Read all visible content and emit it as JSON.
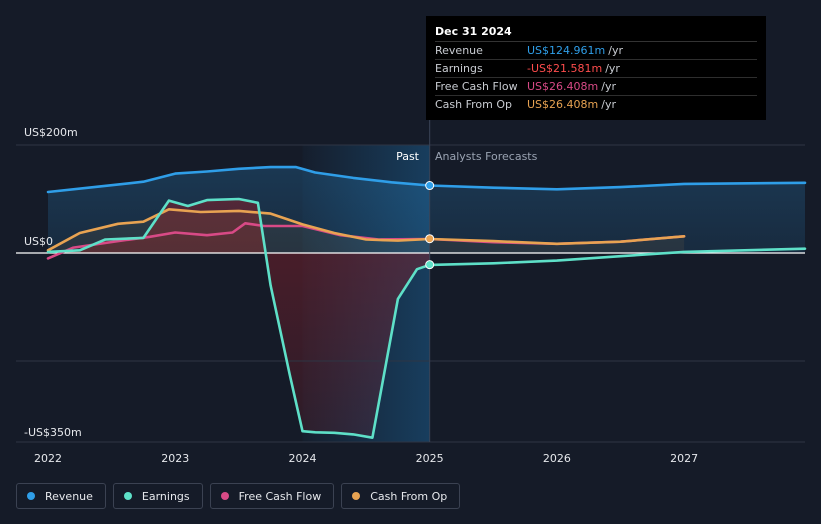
{
  "chart_data": {
    "type": "line",
    "x_start": 2022,
    "x_end": 2027.95,
    "x_ticks": [
      "2022",
      "2023",
      "2024",
      "2025",
      "2026",
      "2027"
    ],
    "y_min": -350,
    "y_max": 200,
    "y_labels": [
      {
        "label": "US$200m",
        "value": 200
      },
      {
        "label": "US$0",
        "value": 0
      },
      {
        "label": "-US$350m",
        "value": -350
      }
    ],
    "divider_x": 2025,
    "past_label": "Past",
    "forecast_label": "Analysts Forecasts",
    "series": [
      {
        "name": "Revenue",
        "color": "#2f9ee8",
        "points": [
          [
            2022,
            113
          ],
          [
            2022.4,
            123
          ],
          [
            2022.75,
            132
          ],
          [
            2023,
            147
          ],
          [
            2023.25,
            151
          ],
          [
            2023.5,
            156
          ],
          [
            2023.75,
            159
          ],
          [
            2023.95,
            159
          ],
          [
            2024.1,
            149
          ],
          [
            2024.4,
            139
          ],
          [
            2024.7,
            131
          ],
          [
            2025,
            125
          ],
          [
            2025.5,
            121
          ],
          [
            2026,
            118
          ],
          [
            2026.5,
            122
          ],
          [
            2027,
            128
          ],
          [
            2027.95,
            130
          ]
        ]
      },
      {
        "name": "Earnings",
        "color": "#5ee0c8",
        "points": [
          [
            2022,
            2
          ],
          [
            2022.25,
            5
          ],
          [
            2022.45,
            25
          ],
          [
            2022.75,
            28
          ],
          [
            2022.95,
            97
          ],
          [
            2023.1,
            87
          ],
          [
            2023.25,
            98
          ],
          [
            2023.5,
            100
          ],
          [
            2023.65,
            93
          ],
          [
            2023.75,
            -60
          ],
          [
            2023.9,
            -225
          ],
          [
            2024,
            -330
          ],
          [
            2024.1,
            -332
          ],
          [
            2024.25,
            -333
          ],
          [
            2024.4,
            -336
          ],
          [
            2024.55,
            -342
          ],
          [
            2024.75,
            -85
          ],
          [
            2024.9,
            -30
          ],
          [
            2025,
            -22
          ],
          [
            2025.5,
            -19
          ],
          [
            2026,
            -14
          ],
          [
            2026.5,
            -6
          ],
          [
            2027,
            2
          ],
          [
            2027.95,
            8
          ]
        ]
      },
      {
        "name": "Free Cash Flow",
        "color": "#d84a86",
        "points": [
          [
            2022,
            -10
          ],
          [
            2022.2,
            10
          ],
          [
            2022.55,
            22
          ],
          [
            2022.8,
            30
          ],
          [
            2023,
            38
          ],
          [
            2023.25,
            33
          ],
          [
            2023.45,
            38
          ],
          [
            2023.55,
            55
          ],
          [
            2023.7,
            50
          ],
          [
            2024,
            50
          ],
          [
            2024.3,
            33
          ],
          [
            2024.6,
            25
          ],
          [
            2025,
            26
          ],
          [
            2025.5,
            20
          ],
          [
            2026,
            17
          ],
          [
            2026.5,
            21
          ],
          [
            2027,
            31
          ]
        ]
      },
      {
        "name": "Cash From Op",
        "color": "#e8a352",
        "points": [
          [
            2022,
            5
          ],
          [
            2022.25,
            37
          ],
          [
            2022.55,
            54
          ],
          [
            2022.75,
            58
          ],
          [
            2022.95,
            81
          ],
          [
            2023.2,
            76
          ],
          [
            2023.5,
            78
          ],
          [
            2023.75,
            73
          ],
          [
            2024,
            53
          ],
          [
            2024.25,
            37
          ],
          [
            2024.5,
            25
          ],
          [
            2024.75,
            23
          ],
          [
            2025,
            26
          ],
          [
            2025.5,
            22
          ],
          [
            2026,
            17
          ],
          [
            2026.5,
            21
          ],
          [
            2027,
            31
          ]
        ]
      }
    ],
    "markers": [
      {
        "series": "Revenue",
        "x": 2025,
        "y": 124.961
      },
      {
        "series": "Earnings",
        "x": 2025,
        "y": -21.581
      },
      {
        "series": "Cash From Op",
        "x": 2025,
        "y": 26.408
      }
    ]
  },
  "tooltip": {
    "date": "Dec 31 2024",
    "rows": [
      {
        "label": "Revenue",
        "value": "US$124.961m",
        "unit": "/yr",
        "color": "#2f9ee8"
      },
      {
        "label": "Earnings",
        "value": "-US$21.581m",
        "unit": "/yr",
        "color": "#ff4d4d"
      },
      {
        "label": "Free Cash Flow",
        "value": "US$26.408m",
        "unit": "/yr",
        "color": "#d84a86"
      },
      {
        "label": "Cash From Op",
        "value": "US$26.408m",
        "unit": "/yr",
        "color": "#e8a352"
      }
    ]
  },
  "legend": [
    {
      "label": "Revenue",
      "color": "#2f9ee8"
    },
    {
      "label": "Earnings",
      "color": "#5ee0c8"
    },
    {
      "label": "Free Cash Flow",
      "color": "#d84a86"
    },
    {
      "label": "Cash From Op",
      "color": "#e8a352"
    }
  ]
}
